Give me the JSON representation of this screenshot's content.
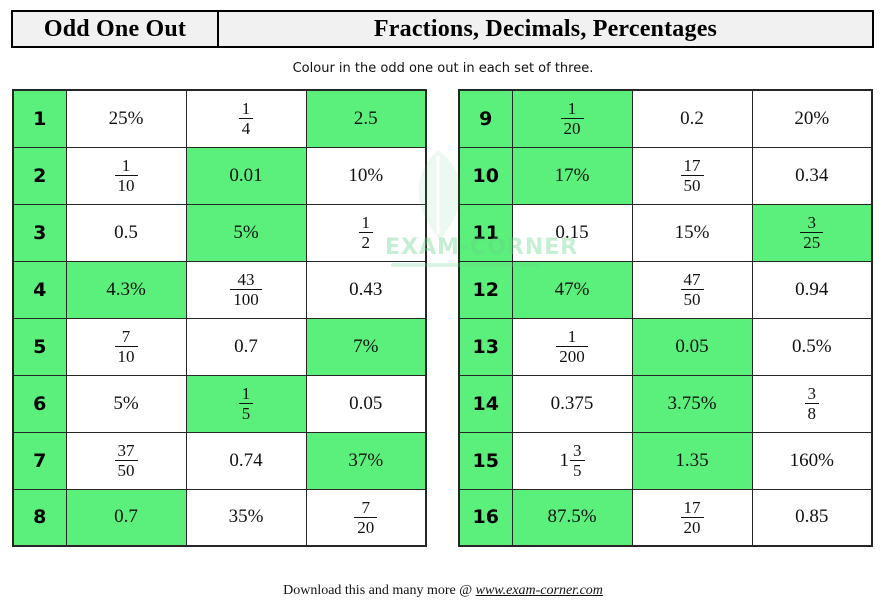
{
  "header": {
    "left_title": "Odd One Out",
    "right_title": "Fractions, Decimals, Percentages"
  },
  "subtitle": "Colour in the odd one out in each set of three.",
  "colors": {
    "highlight_green": "#5bef7b",
    "header_bg": "#f1f1f1",
    "border": "#262626"
  },
  "watermark": {
    "text": "EXAM-CORNER"
  },
  "footer": {
    "text": "Download this and many more @ ",
    "link": "www.exam-corner.com"
  },
  "tables": [
    {
      "name": "left",
      "rows": [
        {
          "n": "1",
          "cells": [
            {
              "t": "25%"
            },
            {
              "f": [
                "1",
                "4"
              ]
            },
            {
              "t": "2.5",
              "hl": true
            }
          ]
        },
        {
          "n": "2",
          "cells": [
            {
              "f": [
                "1",
                "10"
              ]
            },
            {
              "t": "0.01",
              "hl": true
            },
            {
              "t": "10%"
            }
          ]
        },
        {
          "n": "3",
          "cells": [
            {
              "t": "0.5"
            },
            {
              "t": "5%",
              "hl": true
            },
            {
              "f": [
                "1",
                "2"
              ]
            }
          ]
        },
        {
          "n": "4",
          "cells": [
            {
              "t": "4.3%",
              "hl": true
            },
            {
              "f": [
                "43",
                "100"
              ]
            },
            {
              "t": "0.43"
            }
          ]
        },
        {
          "n": "5",
          "cells": [
            {
              "f": [
                "7",
                "10"
              ]
            },
            {
              "t": "0.7"
            },
            {
              "t": "7%",
              "hl": true
            }
          ]
        },
        {
          "n": "6",
          "cells": [
            {
              "t": "5%"
            },
            {
              "f": [
                "1",
                "5"
              ],
              "hl": true
            },
            {
              "t": "0.05"
            }
          ]
        },
        {
          "n": "7",
          "cells": [
            {
              "f": [
                "37",
                "50"
              ]
            },
            {
              "t": "0.74"
            },
            {
              "t": "37%",
              "hl": true
            }
          ]
        },
        {
          "n": "8",
          "cells": [
            {
              "t": "0.7",
              "hl": true
            },
            {
              "t": "35%"
            },
            {
              "f": [
                "7",
                "20"
              ]
            }
          ]
        }
      ]
    },
    {
      "name": "right",
      "rows": [
        {
          "n": "9",
          "cells": [
            {
              "f": [
                "1",
                "20"
              ],
              "hl": true
            },
            {
              "t": "0.2"
            },
            {
              "t": "20%"
            }
          ]
        },
        {
          "n": "10",
          "cells": [
            {
              "t": "17%",
              "hl": true
            },
            {
              "f": [
                "17",
                "50"
              ]
            },
            {
              "t": "0.34"
            }
          ]
        },
        {
          "n": "11",
          "cells": [
            {
              "t": "0.15"
            },
            {
              "t": "15%"
            },
            {
              "f": [
                "3",
                "25"
              ],
              "hl": true
            }
          ]
        },
        {
          "n": "12",
          "cells": [
            {
              "t": "47%",
              "hl": true
            },
            {
              "f": [
                "47",
                "50"
              ]
            },
            {
              "t": "0.94"
            }
          ]
        },
        {
          "n": "13",
          "cells": [
            {
              "f": [
                "1",
                "200"
              ]
            },
            {
              "t": "0.05",
              "hl": true
            },
            {
              "t": "0.5%"
            }
          ]
        },
        {
          "n": "14",
          "cells": [
            {
              "t": "0.375"
            },
            {
              "t": "3.75%",
              "hl": true
            },
            {
              "f": [
                "3",
                "8"
              ]
            }
          ]
        },
        {
          "n": "15",
          "cells": [
            {
              "w": "1",
              "f": [
                "3",
                "5"
              ]
            },
            {
              "t": "1.35",
              "hl": true
            },
            {
              "t": "160%"
            }
          ]
        },
        {
          "n": "16",
          "cells": [
            {
              "t": "87.5%",
              "hl": true
            },
            {
              "f": [
                "17",
                "20"
              ]
            },
            {
              "t": "0.85"
            }
          ]
        }
      ]
    }
  ]
}
